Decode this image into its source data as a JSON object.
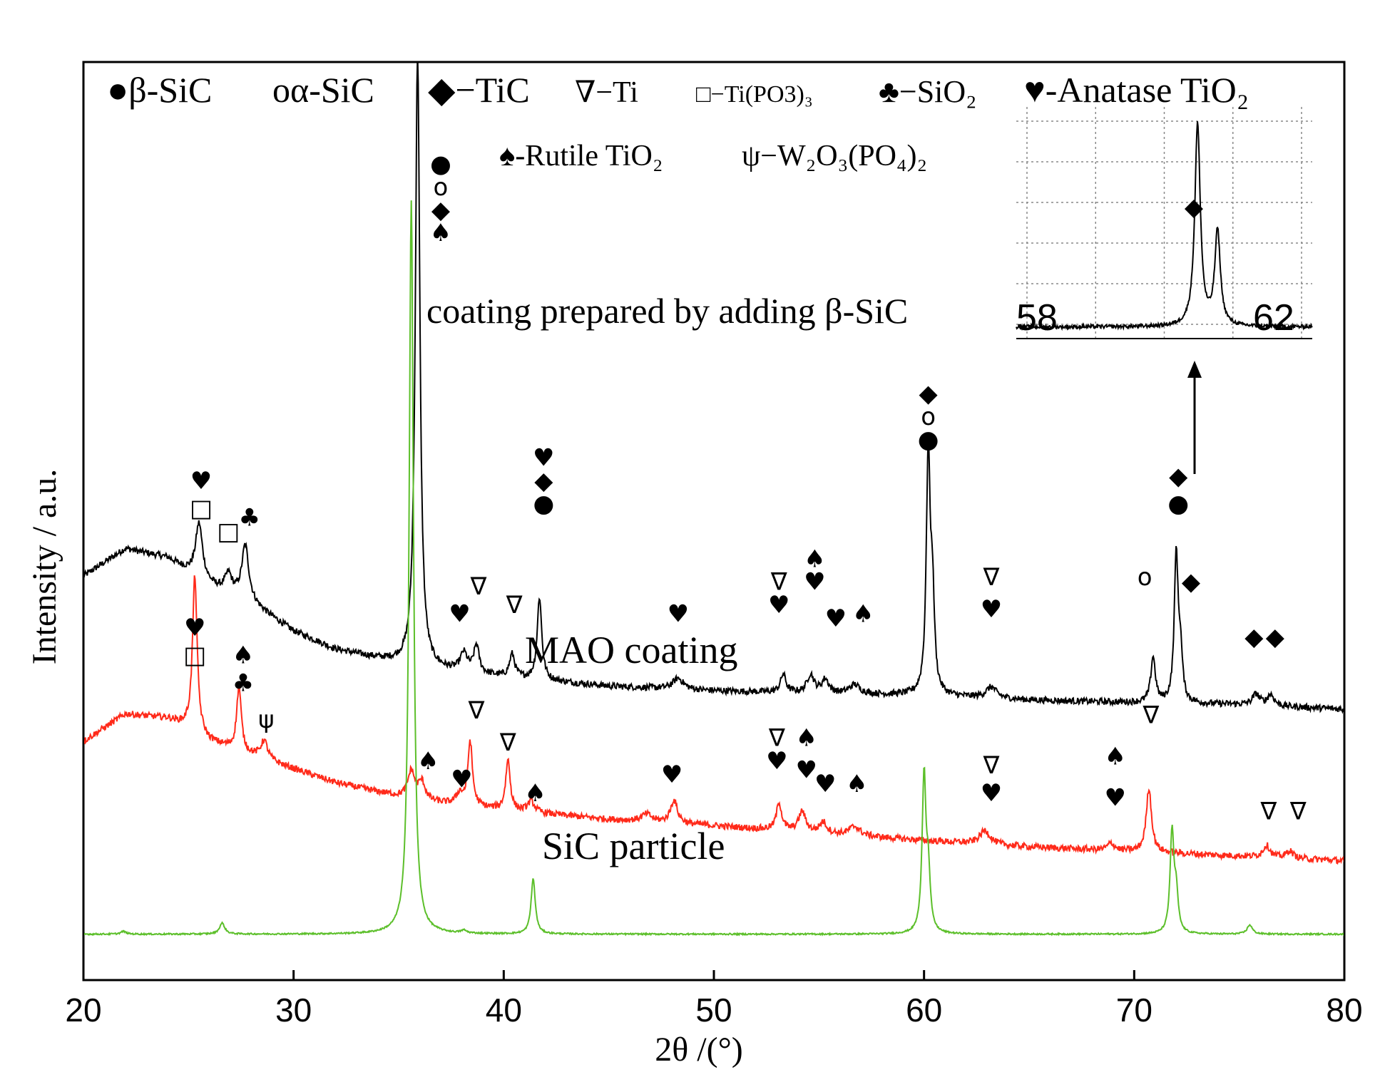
{
  "chart_data": {
    "type": "line",
    "title": "",
    "xlabel": "2θ /(°)",
    "ylabel": "Intensity / a.u.",
    "xlim": [
      20,
      80
    ],
    "ylim": [
      0,
      100
    ],
    "x_ticks": [
      20,
      30,
      40,
      50,
      60,
      70,
      80
    ],
    "grid": false,
    "legend_lines": [
      {
        "id": "b_sic",
        "text": "●β-SiC"
      },
      {
        "id": "a_sic",
        "text": "oα-SiC"
      },
      {
        "id": "tic",
        "text": "◆−TiC"
      },
      {
        "id": "ti",
        "text": "∇−Ti"
      },
      {
        "id": "tipo3",
        "text": "□−Ti(PO3)₃"
      },
      {
        "id": "sio2",
        "text": "♣−SiO₂"
      },
      {
        "id": "anatase",
        "text": "♥-Anatase TiO₂"
      },
      {
        "id": "rutile",
        "text": "♠-Rutile TiO₂"
      },
      {
        "id": "w2o3",
        "text": "ψ−W₂O₃(PO₄)₂"
      }
    ],
    "series": [
      {
        "name": "coating prepared by adding β-SiC",
        "color": "#000000",
        "baseline": [
          [
            20,
            44
          ],
          [
            22,
            47
          ],
          [
            24,
            46
          ],
          [
            26,
            43
          ],
          [
            28,
            41
          ],
          [
            30,
            38
          ],
          [
            32,
            36
          ],
          [
            34,
            35
          ],
          [
            36,
            34
          ],
          [
            40,
            33
          ],
          [
            45,
            32
          ],
          [
            50,
            31.5
          ],
          [
            55,
            31.2
          ],
          [
            60,
            31
          ],
          [
            65,
            30.5
          ],
          [
            70,
            30.2
          ],
          [
            75,
            30
          ],
          [
            80,
            29.5
          ]
        ],
        "peaks": [
          {
            "x": 25.5,
            "h": 6,
            "w": 0.2
          },
          {
            "x": 26.9,
            "h": 2,
            "w": 0.2
          },
          {
            "x": 27.7,
            "h": 6,
            "w": 0.2
          },
          {
            "x": 35.9,
            "h": 67,
            "w": 0.13
          },
          {
            "x": 38.1,
            "h": 2,
            "w": 0.2
          },
          {
            "x": 38.7,
            "h": 3,
            "w": 0.15
          },
          {
            "x": 40.4,
            "h": 2.5,
            "w": 0.15
          },
          {
            "x": 41.7,
            "h": 9,
            "w": 0.13
          },
          {
            "x": 48.3,
            "h": 1.2,
            "w": 0.3
          },
          {
            "x": 53.3,
            "h": 2,
            "w": 0.15
          },
          {
            "x": 54.6,
            "h": 2,
            "w": 0.2
          },
          {
            "x": 55.3,
            "h": 1.5,
            "w": 0.2
          },
          {
            "x": 56.7,
            "h": 1,
            "w": 0.3
          },
          {
            "x": 60.2,
            "h": 26,
            "w": 0.11
          },
          {
            "x": 60.4,
            "h": 10,
            "w": 0.11
          },
          {
            "x": 63.2,
            "h": 1.2,
            "w": 0.3
          },
          {
            "x": 70.9,
            "h": 5,
            "w": 0.13
          },
          {
            "x": 72.0,
            "h": 16,
            "w": 0.11
          },
          {
            "x": 72.2,
            "h": 5,
            "w": 0.11
          },
          {
            "x": 75.8,
            "h": 1.2,
            "w": 0.2
          },
          {
            "x": 76.5,
            "h": 1.2,
            "w": 0.2
          }
        ]
      },
      {
        "name": "MAO coating",
        "color": "#ff2a1a",
        "baseline": [
          [
            20,
            26
          ],
          [
            22,
            29
          ],
          [
            24,
            28.5
          ],
          [
            25,
            27.5
          ],
          [
            26,
            26
          ],
          [
            28,
            24.5
          ],
          [
            30,
            23
          ],
          [
            32,
            21.5
          ],
          [
            34,
            20.5
          ],
          [
            36,
            19.5
          ],
          [
            40,
            18.5
          ],
          [
            45,
            17.5
          ],
          [
            50,
            16.8
          ],
          [
            55,
            16
          ],
          [
            60,
            15.2
          ],
          [
            65,
            14.5
          ],
          [
            70,
            14
          ],
          [
            75,
            13.5
          ],
          [
            80,
            13
          ]
        ],
        "peaks": [
          {
            "x": 25.3,
            "h": 17,
            "w": 0.13
          },
          {
            "x": 27.4,
            "h": 7,
            "w": 0.13
          },
          {
            "x": 28.6,
            "h": 2,
            "w": 0.2
          },
          {
            "x": 35.6,
            "h": 3,
            "w": 0.2
          },
          {
            "x": 36.1,
            "h": 2,
            "w": 0.2
          },
          {
            "x": 37.9,
            "h": 1.2,
            "w": 0.2
          },
          {
            "x": 38.4,
            "h": 7,
            "w": 0.13
          },
          {
            "x": 40.2,
            "h": 5.5,
            "w": 0.13
          },
          {
            "x": 41.3,
            "h": 1.2,
            "w": 0.2
          },
          {
            "x": 46.8,
            "h": 0.8,
            "w": 0.3
          },
          {
            "x": 48.1,
            "h": 2.5,
            "w": 0.2
          },
          {
            "x": 53.1,
            "h": 3,
            "w": 0.15
          },
          {
            "x": 54.2,
            "h": 2.2,
            "w": 0.2
          },
          {
            "x": 55.2,
            "h": 1.2,
            "w": 0.2
          },
          {
            "x": 56.7,
            "h": 1,
            "w": 0.3
          },
          {
            "x": 62.9,
            "h": 1.5,
            "w": 0.3
          },
          {
            "x": 68.9,
            "h": 0.8,
            "w": 0.2
          },
          {
            "x": 70.7,
            "h": 7,
            "w": 0.15
          },
          {
            "x": 76.3,
            "h": 1.3,
            "w": 0.2
          },
          {
            "x": 77.4,
            "h": 0.8,
            "w": 0.2
          }
        ]
      },
      {
        "name": "SiC particle",
        "color": "#5cbf2a",
        "baseline": [
          [
            20,
            5
          ],
          [
            80,
            5
          ]
        ],
        "peaks": [
          {
            "x": 21.9,
            "h": 0.3,
            "w": 0.15
          },
          {
            "x": 26.6,
            "h": 1.2,
            "w": 0.15
          },
          {
            "x": 35.6,
            "h": 80,
            "w": 0.12
          },
          {
            "x": 38.1,
            "h": 0.3,
            "w": 0.15
          },
          {
            "x": 41.4,
            "h": 6,
            "w": 0.12
          },
          {
            "x": 60.0,
            "h": 17,
            "w": 0.11
          },
          {
            "x": 60.2,
            "h": 6,
            "w": 0.11
          },
          {
            "x": 71.8,
            "h": 11,
            "w": 0.11
          },
          {
            "x": 72.0,
            "h": 4,
            "w": 0.11
          },
          {
            "x": 75.5,
            "h": 1,
            "w": 0.15
          }
        ]
      }
    ],
    "annotations": [
      {
        "x": 37.0,
        "y": 88,
        "text": "●"
      },
      {
        "x": 37.0,
        "y": 85.5,
        "text": "o"
      },
      {
        "x": 37.0,
        "y": 83,
        "text": "◆"
      },
      {
        "x": 37.0,
        "y": 80.5,
        "text": "♠"
      },
      {
        "x": 25.6,
        "y": 53.5,
        "text": "♥"
      },
      {
        "x": 25.6,
        "y": 50.5,
        "text": "□"
      },
      {
        "x": 26.9,
        "y": 48,
        "text": "□"
      },
      {
        "x": 27.9,
        "y": 49.5,
        "text": "♣"
      },
      {
        "x": 37.9,
        "y": 39,
        "text": "♥"
      },
      {
        "x": 38.8,
        "y": 42,
        "text": "∇"
      },
      {
        "x": 40.5,
        "y": 40,
        "text": "∇"
      },
      {
        "x": 41.9,
        "y": 56,
        "text": "♥"
      },
      {
        "x": 41.9,
        "y": 53.5,
        "text": "◆"
      },
      {
        "x": 41.9,
        "y": 51,
        "text": "●"
      },
      {
        "x": 48.3,
        "y": 39,
        "text": "♥"
      },
      {
        "x": 53.1,
        "y": 42.5,
        "text": "∇"
      },
      {
        "x": 53.1,
        "y": 40,
        "text": "♥"
      },
      {
        "x": 54.8,
        "y": 45,
        "text": "♠"
      },
      {
        "x": 54.8,
        "y": 42.5,
        "text": "♥"
      },
      {
        "x": 55.8,
        "y": 38.5,
        "text": "♥"
      },
      {
        "x": 57.1,
        "y": 39,
        "text": "♠"
      },
      {
        "x": 60.2,
        "y": 63,
        "text": "◆"
      },
      {
        "x": 60.2,
        "y": 60.5,
        "text": "o"
      },
      {
        "x": 60.2,
        "y": 58,
        "text": "●"
      },
      {
        "x": 63.2,
        "y": 43,
        "text": "∇"
      },
      {
        "x": 63.2,
        "y": 39.5,
        "text": "♥"
      },
      {
        "x": 70.5,
        "y": 43,
        "text": "o"
      },
      {
        "x": 72.1,
        "y": 54,
        "text": "◆"
      },
      {
        "x": 72.1,
        "y": 51,
        "text": "●"
      },
      {
        "x": 72.7,
        "y": 42.5,
        "text": "◆"
      },
      {
        "x": 75.7,
        "y": 36.5,
        "text": "◆"
      },
      {
        "x": 76.7,
        "y": 36.5,
        "text": "◆"
      },
      {
        "x": 25.3,
        "y": 37.5,
        "text": "♥"
      },
      {
        "x": 25.3,
        "y": 34.5,
        "text": "□"
      },
      {
        "x": 27.6,
        "y": 34.5,
        "text": "♠"
      },
      {
        "x": 27.6,
        "y": 31.5,
        "text": "♣"
      },
      {
        "x": 28.7,
        "y": 27.5,
        "text": "ψ"
      },
      {
        "x": 36.4,
        "y": 23,
        "text": "♠"
      },
      {
        "x": 38.0,
        "y": 21,
        "text": "♥"
      },
      {
        "x": 38.7,
        "y": 28.5,
        "text": "∇"
      },
      {
        "x": 40.2,
        "y": 25,
        "text": "∇"
      },
      {
        "x": 41.5,
        "y": 19.5,
        "text": "♠"
      },
      {
        "x": 48.0,
        "y": 21.5,
        "text": "♥"
      },
      {
        "x": 53.0,
        "y": 25.5,
        "text": "∇"
      },
      {
        "x": 53.0,
        "y": 23,
        "text": "♥"
      },
      {
        "x": 54.4,
        "y": 25.5,
        "text": "♠"
      },
      {
        "x": 54.4,
        "y": 22,
        "text": "♥"
      },
      {
        "x": 55.3,
        "y": 20.5,
        "text": "♥"
      },
      {
        "x": 56.8,
        "y": 20.5,
        "text": "♠"
      },
      {
        "x": 63.2,
        "y": 22.5,
        "text": "∇"
      },
      {
        "x": 63.2,
        "y": 19.5,
        "text": "♥"
      },
      {
        "x": 69.1,
        "y": 23.5,
        "text": "♠"
      },
      {
        "x": 69.1,
        "y": 19,
        "text": "♥"
      },
      {
        "x": 70.8,
        "y": 28,
        "text": "∇"
      },
      {
        "x": 76.4,
        "y": 17.5,
        "text": "∇"
      },
      {
        "x": 77.8,
        "y": 17.5,
        "text": "∇"
      }
    ],
    "inset": {
      "xlim": [
        58,
        62
      ],
      "x_tick_labels": [
        "58",
        "62"
      ],
      "peaks": [
        {
          "x": 60.45,
          "h": 90,
          "w": 0.045
        },
        {
          "x": 60.72,
          "h": 42,
          "w": 0.045
        }
      ],
      "annotation": "◆",
      "grid": true
    }
  }
}
